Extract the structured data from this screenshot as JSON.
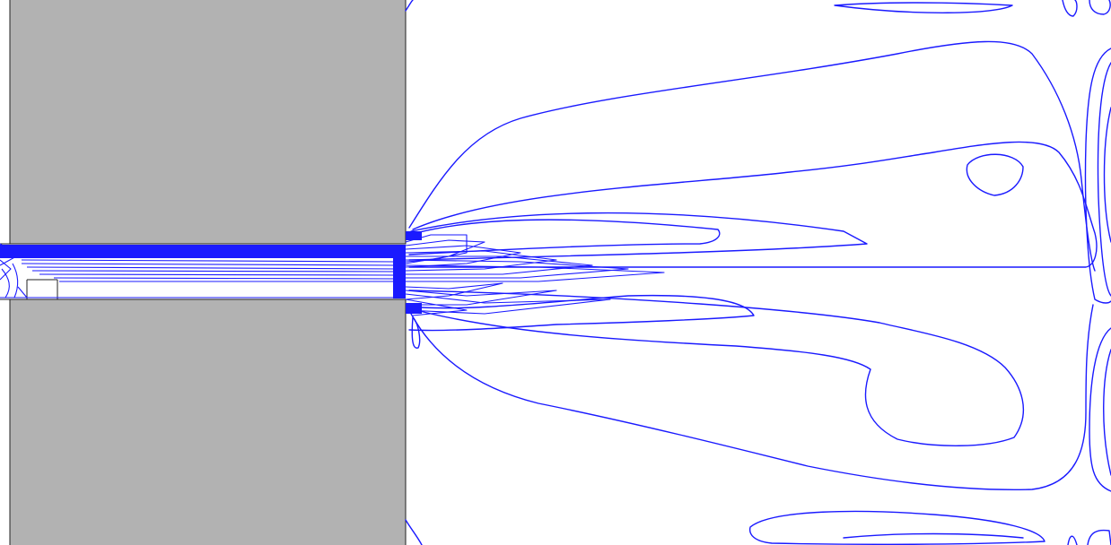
{
  "figure": {
    "kind": "contour plot of flow through a slot into an open chamber",
    "contour_color": "#1a1aff",
    "solid_color": "#b2b2b2",
    "outline_color": "#222222",
    "background_color": "#ffffff"
  }
}
